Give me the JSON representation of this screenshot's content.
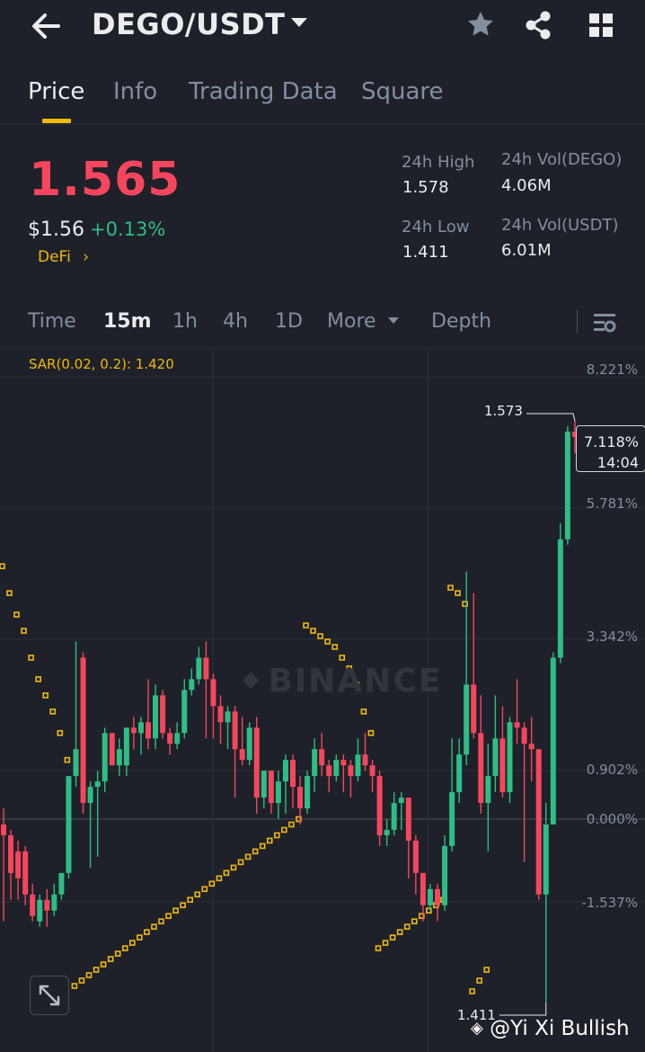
{
  "header": {
    "pair": "DEGO/USDT"
  },
  "tabs": [
    {
      "label": "Price",
      "active": true
    },
    {
      "label": "Info",
      "active": false
    },
    {
      "label": "Trading Data",
      "active": false
    },
    {
      "label": "Square",
      "active": false
    }
  ],
  "ticker": {
    "last_price": "1.565",
    "usd_price": "$1.56",
    "change": "+0.13%",
    "tag": "DeFi",
    "high_label": "24h High",
    "high_value": "1.578",
    "low_label": "24h Low",
    "low_value": "1.411",
    "vol_base_label": "24h Vol(DEGO)",
    "vol_base_value": "4.06M",
    "vol_quote_label": "24h Vol(USDT)",
    "vol_quote_value": "6.01M"
  },
  "timeframes": {
    "time": "Time",
    "m15": "15m",
    "h1": "1h",
    "h4": "4h",
    "d1": "1D",
    "more": "More",
    "depth": "Depth"
  },
  "indicator": "SAR(0.02, 0.2): 1.420",
  "watermark": "BINANCE",
  "colors": {
    "up": "#2ebd85",
    "down": "#f6465d",
    "sar": "#f0b90b",
    "accent": "#f0b90b"
  },
  "chart_data": {
    "type": "candlestick",
    "y_axis_labels": [
      "8.221%",
      "5.781%",
      "3.342%",
      "0.902%",
      "0.000%",
      "-1.537%"
    ],
    "y_values_pct": [
      8.221,
      5.781,
      3.342,
      0.902,
      0.0,
      -1.537
    ],
    "current": {
      "pct": "7.118%",
      "countdown": "14:04"
    },
    "high_marker": "1.573",
    "low_marker": "1.411",
    "candles": [
      [
        -0.1,
        -0.3,
        0.2,
        -1.9
      ],
      [
        -0.3,
        -1.0,
        -0.2,
        -1.5
      ],
      [
        -0.6,
        -1.1,
        -0.4,
        -1.5
      ],
      [
        -0.6,
        -1.4,
        -0.5,
        -1.6
      ],
      [
        -1.4,
        -1.8,
        -1.2,
        -1.9
      ],
      [
        -1.9,
        -1.5,
        -1.4,
        -2.0
      ],
      [
        -1.5,
        -1.7,
        -1.3,
        -2.0
      ],
      [
        -1.7,
        -1.4,
        -1.2,
        -1.8
      ],
      [
        -1.4,
        -1.0,
        -1.1,
        -1.5
      ],
      [
        -1.0,
        0.8,
        0.7,
        -1.1
      ],
      [
        0.8,
        1.3,
        3.3,
        0.6
      ],
      [
        3.0,
        0.3,
        3.1,
        0.1
      ],
      [
        0.3,
        0.6,
        0.7,
        -0.9
      ],
      [
        0.6,
        0.7,
        0.9,
        -0.7
      ],
      [
        0.7,
        1.6,
        1.7,
        0.5
      ],
      [
        1.6,
        1.0,
        1.5,
        1.4
      ],
      [
        1.0,
        1.3,
        1.5,
        0.8
      ],
      [
        1.0,
        1.7,
        1.2,
        0.8
      ],
      [
        1.7,
        1.6,
        1.9,
        1.3
      ],
      [
        1.6,
        1.8,
        1.9,
        1.2
      ],
      [
        1.8,
        1.5,
        2.6,
        1.3
      ],
      [
        1.5,
        2.3,
        2.5,
        1.3
      ],
      [
        2.3,
        1.6,
        2.4,
        1.5
      ],
      [
        1.6,
        1.4,
        1.7,
        1.2
      ],
      [
        1.4,
        1.6,
        1.8,
        1.3
      ],
      [
        1.6,
        2.4,
        2.6,
        1.5
      ],
      [
        2.4,
        2.6,
        2.8,
        2.3
      ],
      [
        2.6,
        3.0,
        3.2,
        2.5
      ],
      [
        3.0,
        2.6,
        3.3,
        1.5
      ],
      [
        2.6,
        2.1,
        2.7,
        1.5
      ],
      [
        2.1,
        1.8,
        2.3,
        1.4
      ],
      [
        1.8,
        2.0,
        2.1,
        1.3
      ],
      [
        2.0,
        1.3,
        2.1,
        0.4
      ],
      [
        1.3,
        1.1,
        1.9,
        1.0
      ],
      [
        1.1,
        1.7,
        1.8,
        1.0
      ],
      [
        1.7,
        0.4,
        1.9,
        0.1
      ],
      [
        0.4,
        0.9,
        0.9,
        0.2
      ],
      [
        0.9,
        0.3,
        0.9,
        0.1
      ],
      [
        0.3,
        0.7,
        0.9,
        0.0
      ],
      [
        0.7,
        1.1,
        1.2,
        0.1
      ],
      [
        1.1,
        0.6,
        1.2,
        0.2
      ],
      [
        0.6,
        0.2,
        0.8,
        -0.1
      ],
      [
        0.2,
        0.8,
        0.9,
        0.1
      ],
      [
        0.8,
        1.3,
        1.5,
        0.5
      ],
      [
        1.3,
        1.0,
        1.6,
        0.8
      ],
      [
        1.0,
        0.8,
        1.1,
        0.5
      ],
      [
        0.8,
        1.1,
        1.2,
        0.7
      ],
      [
        1.1,
        1.0,
        1.2,
        0.5
      ],
      [
        1.0,
        0.8,
        1.1,
        0.4
      ],
      [
        0.8,
        1.2,
        1.5,
        0.7
      ],
      [
        1.2,
        1.0,
        1.6,
        0.9
      ],
      [
        1.0,
        0.8,
        1.1,
        0.5
      ],
      [
        0.8,
        -0.3,
        0.9,
        -0.5
      ],
      [
        -0.3,
        -0.2,
        0.0,
        -0.5
      ],
      [
        -0.2,
        0.3,
        0.5,
        -0.3
      ],
      [
        0.3,
        0.4,
        0.5,
        -0.2
      ],
      [
        0.4,
        -0.4,
        0.4,
        -1.1
      ],
      [
        -0.4,
        -1.0,
        -0.3,
        -1.4
      ],
      [
        -1.0,
        -1.6,
        -1.0,
        -1.9
      ],
      [
        -1.6,
        -1.3,
        -1.2,
        -1.7
      ],
      [
        -1.3,
        -1.6,
        -1.2,
        -1.9
      ],
      [
        -1.6,
        -0.5,
        -0.3,
        -1.7
      ],
      [
        -0.5,
        0.5,
        1.5,
        -0.6
      ],
      [
        0.5,
        1.2,
        1.5,
        0.3
      ],
      [
        1.2,
        2.5,
        4.6,
        1.0
      ],
      [
        2.5,
        1.6,
        4.2,
        1.5
      ],
      [
        1.6,
        0.3,
        2.3,
        0.1
      ],
      [
        0.3,
        0.8,
        1.4,
        -0.6
      ],
      [
        0.8,
        1.5,
        2.3,
        0.5
      ],
      [
        1.5,
        0.5,
        2.1,
        0.4
      ],
      [
        0.5,
        1.8,
        1.9,
        0.3
      ],
      [
        1.8,
        1.7,
        2.6,
        1.4
      ],
      [
        1.7,
        1.4,
        1.8,
        -0.8
      ],
      [
        1.4,
        1.3,
        1.9,
        0.7
      ],
      [
        1.3,
        -1.4,
        1.3,
        -1.5
      ],
      [
        -1.4,
        -0.1,
        0.3,
        -3.4
      ],
      [
        -0.1,
        3.0,
        3.1,
        -0.1
      ],
      [
        3.0,
        5.2,
        5.5,
        2.9
      ],
      [
        5.2,
        7.2,
        7.3,
        5.1
      ],
      [
        7.2,
        7.1,
        7.4,
        6.8
      ]
    ],
    "sar_points": [
      [
        -0.2,
        4.7
      ],
      [
        0.8,
        4.2
      ],
      [
        1.8,
        3.8
      ],
      [
        2.8,
        3.5
      ],
      [
        3.8,
        3.0
      ],
      [
        4.8,
        2.6
      ],
      [
        5.8,
        2.3
      ],
      [
        6.8,
        2.0
      ],
      [
        7.8,
        1.6
      ],
      [
        8.8,
        1.1
      ],
      [
        9.8,
        -3.1
      ],
      [
        10.8,
        -3.0
      ],
      [
        11.8,
        -2.9
      ],
      [
        12.8,
        -2.8
      ],
      [
        13.8,
        -2.7
      ],
      [
        14.8,
        -2.6
      ],
      [
        15.8,
        -2.5
      ],
      [
        16.8,
        -2.4
      ],
      [
        17.8,
        -2.3
      ],
      [
        18.8,
        -2.2
      ],
      [
        19.8,
        -2.1
      ],
      [
        20.8,
        -2.0
      ],
      [
        21.8,
        -1.9
      ],
      [
        22.8,
        -1.8
      ],
      [
        23.8,
        -1.7
      ],
      [
        24.8,
        -1.6
      ],
      [
        25.8,
        -1.5
      ],
      [
        26.8,
        -1.4
      ],
      [
        27.8,
        -1.3
      ],
      [
        28.8,
        -1.2
      ],
      [
        29.8,
        -1.1
      ],
      [
        30.8,
        -1.0
      ],
      [
        31.8,
        -0.9
      ],
      [
        32.8,
        -0.8
      ],
      [
        33.8,
        -0.7
      ],
      [
        34.8,
        -0.6
      ],
      [
        35.8,
        -0.5
      ],
      [
        36.8,
        -0.4
      ],
      [
        37.8,
        -0.3
      ],
      [
        38.8,
        -0.2
      ],
      [
        39.8,
        -0.1
      ],
      [
        40.8,
        0.0
      ],
      [
        41.8,
        3.6
      ],
      [
        42.8,
        3.5
      ],
      [
        43.8,
        3.4
      ],
      [
        44.8,
        3.3
      ],
      [
        45.8,
        3.2
      ],
      [
        46.8,
        3.0
      ],
      [
        47.8,
        2.8
      ],
      [
        48.8,
        2.5
      ],
      [
        49.8,
        2.0
      ],
      [
        50.8,
        1.6
      ],
      [
        51.8,
        -2.4
      ],
      [
        52.8,
        -2.3
      ],
      [
        53.8,
        -2.2
      ],
      [
        54.8,
        -2.1
      ],
      [
        55.8,
        -2.0
      ],
      [
        56.8,
        -1.9
      ],
      [
        57.8,
        -1.8
      ],
      [
        58.8,
        -1.7
      ],
      [
        59.8,
        -1.6
      ],
      [
        60.8,
        -1.5
      ],
      [
        61.8,
        4.3
      ],
      [
        62.8,
        4.2
      ],
      [
        63.8,
        4.0
      ],
      [
        64.8,
        -3.2
      ],
      [
        65.8,
        -3.0
      ],
      [
        66.8,
        -2.8
      ]
    ]
  }
}
